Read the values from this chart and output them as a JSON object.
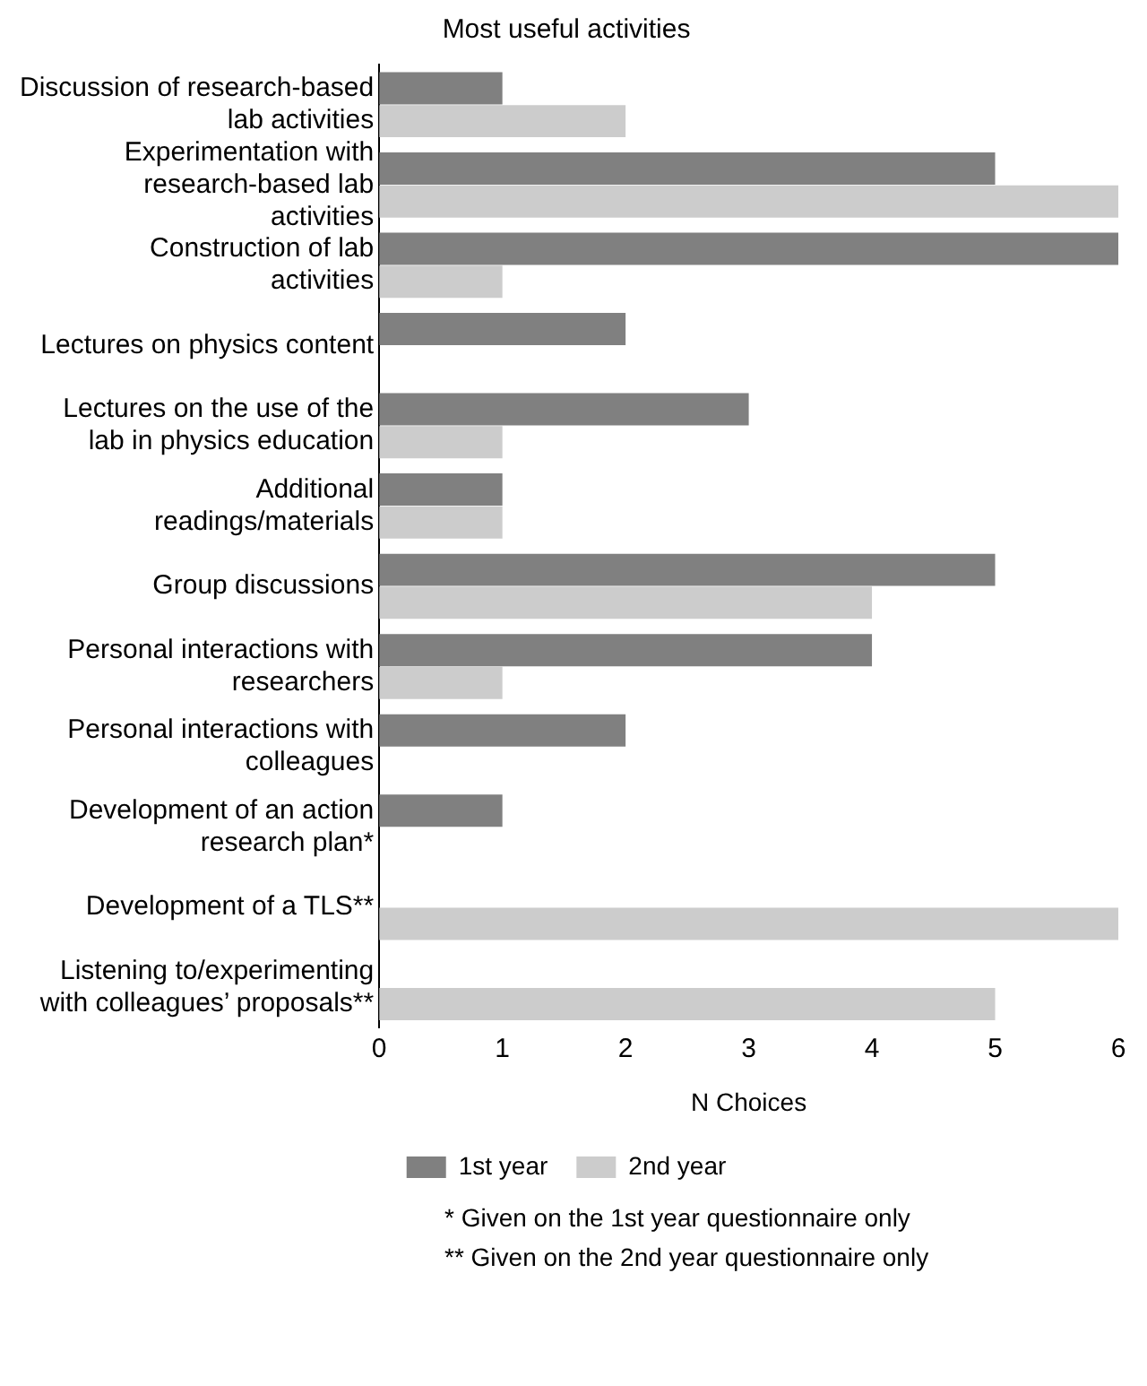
{
  "chart_data": {
    "type": "bar",
    "orientation": "horizontal",
    "title": "Most useful activities",
    "xlabel": "N Choices",
    "categories": [
      "Discussion of research-based lab activities",
      "Experimentation with research-based lab activities",
      "Construction of lab activities",
      "Lectures on physics content",
      "Lectures on the use of the lab in physics education",
      "Additional readings/materials",
      "Group discussions",
      "Personal interactions with researchers",
      "Personal interactions with colleagues",
      "Development of an action research plan*",
      "Development of a TLS**",
      "Listening to/experimenting with colleagues’ proposals**"
    ],
    "series": [
      {
        "name": "1st year",
        "color": "#808080",
        "values": [
          1,
          5,
          6,
          2,
          3,
          1,
          5,
          4,
          2,
          1,
          null,
          null
        ]
      },
      {
        "name": "2nd year",
        "color": "#cccccc",
        "values": [
          2,
          6,
          1,
          null,
          1,
          1,
          4,
          1,
          null,
          null,
          6,
          5
        ]
      }
    ],
    "xlim": [
      0,
      6
    ],
    "xticks": [
      0,
      1,
      2,
      3,
      4,
      5,
      6
    ],
    "grid": false,
    "legend": "bottom",
    "annotations": [
      "*  Given on the 1st year questionnaire only",
      "** Given on the 2nd year questionnaire only"
    ]
  }
}
